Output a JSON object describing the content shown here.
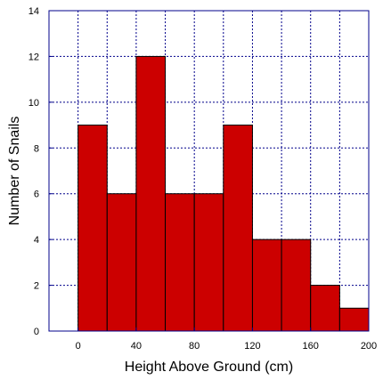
{
  "chart_data": {
    "type": "bar",
    "title": "",
    "xlabel": "Height Above Ground (cm)",
    "ylabel": "Number of Snails",
    "bin_edges": [
      0,
      20,
      40,
      60,
      80,
      100,
      120,
      140,
      160,
      180,
      200
    ],
    "values": [
      9,
      6,
      12,
      6,
      6,
      9,
      4,
      4,
      2,
      1
    ],
    "xlim": [
      -20,
      200
    ],
    "ylim": [
      0,
      14
    ],
    "x_ticks": [
      0,
      40,
      80,
      120,
      160,
      200
    ],
    "x_tick_labels": [
      "0",
      "40",
      "80",
      "120",
      "160",
      "200"
    ],
    "y_ticks": [
      0,
      2,
      4,
      6,
      8,
      10,
      12,
      14
    ],
    "y_tick_labels": [
      "0",
      "2",
      "4",
      "6",
      "8",
      "10",
      "12",
      "14"
    ],
    "grid": true,
    "legend": "none",
    "colors": {
      "bar_fill": "#cc0000",
      "bar_edge": "#000000",
      "grid": "#00008b",
      "frame": "#00008b"
    }
  }
}
